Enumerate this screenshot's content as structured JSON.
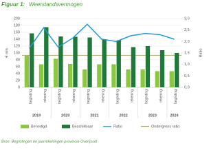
{
  "chart_data": {
    "type": "bar",
    "title_prefix": "Figuur 1:",
    "title": "Weerstandsvermogen",
    "y_label": "€ mln",
    "y2_label": "Ratio",
    "categories": [
      "begroting",
      "rekening",
      "begroting",
      "rekening",
      "begroting",
      "rekening",
      "begroting",
      "rekening",
      "begroting",
      "rekening",
      "begroting"
    ],
    "year_labels": [
      "2019",
      "2020",
      "2021",
      "2022",
      "2023",
      "2024"
    ],
    "series": [
      {
        "name": "Benodigd",
        "type": "bar",
        "color": "#8dc63f",
        "values": [
          92,
          67,
          83,
          68,
          52,
          67,
          67,
          52,
          52,
          47,
          47
        ]
      },
      {
        "name": "Beschikbaar",
        "type": "bar",
        "color": "#1f7a3a",
        "values": [
          157,
          175,
          148,
          147,
          145,
          140,
          137,
          117,
          120,
          108,
          100
        ]
      },
      {
        "name": "Ratio",
        "type": "line",
        "axis": "y2",
        "color": "#1e9ad6",
        "values": [
          1.7,
          2.6,
          1.75,
          2.15,
          2.75,
          2.1,
          2.0,
          2.25,
          2.35,
          2.3,
          2.1
        ]
      }
    ],
    "reference_line": {
      "name": "Ondergrens ratio",
      "axis": "y2",
      "color": "#a5a25f",
      "value": 1.4
    },
    "ylim": [
      0,
      200
    ],
    "yticks": [
      0,
      20,
      40,
      60,
      80,
      100,
      120,
      140,
      160,
      180,
      200
    ],
    "y2lim": [
      0,
      3
    ],
    "y2ticks": [
      {
        "value": 0,
        "label": "0,0"
      },
      {
        "value": 0.5,
        "label": "0,5"
      },
      {
        "value": 1,
        "label": "1,0"
      },
      {
        "value": 1.5,
        "label": "1,5"
      },
      {
        "value": 2,
        "label": "2,0"
      },
      {
        "value": 2.5,
        "label": "2,5"
      },
      {
        "value": 3,
        "label": "3,0"
      }
    ],
    "grid": true,
    "source": "Bron: Begrotingen en jaarrekeningen provincie Overijssel"
  }
}
